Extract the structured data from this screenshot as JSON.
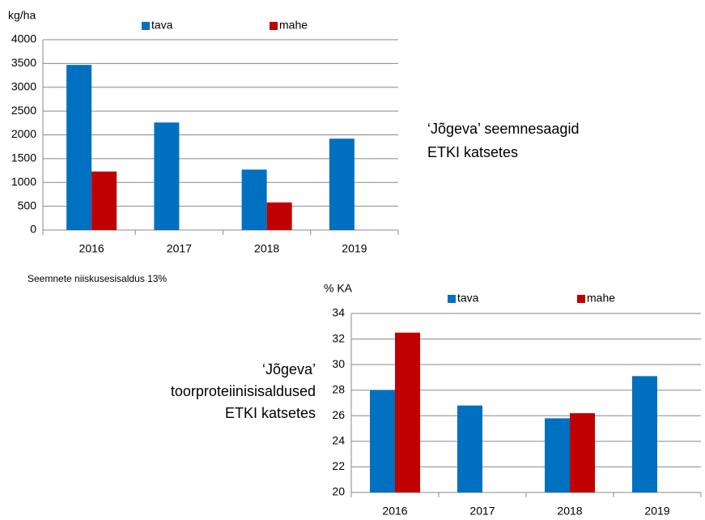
{
  "chart_data": [
    {
      "type": "bar",
      "title": [
        "‘Jõgeva’ seemnesaagid",
        "ETKI katsetes"
      ],
      "ylabel": "kg/ha",
      "note": "Seemnete niiskusesisaldus 13%",
      "categories": [
        "2016",
        "2017",
        "2018",
        "2019"
      ],
      "series": [
        {
          "name": "tava",
          "color": "#0070c0",
          "values": [
            3470,
            2260,
            1270,
            1920
          ]
        },
        {
          "name": "mahe",
          "color": "#c00000",
          "values": [
            1230,
            null,
            580,
            null
          ]
        }
      ],
      "ylim": [
        0,
        4000
      ],
      "yticks": [
        0,
        500,
        1000,
        1500,
        2000,
        2500,
        3000,
        3500,
        4000
      ],
      "grid": true
    },
    {
      "type": "bar",
      "title": [
        "‘Jõgeva’",
        "toorproteiinisisaldused",
        "ETKI katsetes"
      ],
      "ylabel": "% KA",
      "categories": [
        "2016",
        "2017",
        "2018",
        "2019"
      ],
      "series": [
        {
          "name": "tava",
          "color": "#0070c0",
          "values": [
            28,
            26.8,
            25.8,
            29.1
          ]
        },
        {
          "name": "mahe",
          "color": "#c00000",
          "values": [
            32.5,
            null,
            26.2,
            null
          ]
        }
      ],
      "ylim": [
        20,
        34
      ],
      "yticks": [
        20,
        22,
        24,
        26,
        28,
        30,
        32,
        34
      ],
      "grid": true
    }
  ]
}
